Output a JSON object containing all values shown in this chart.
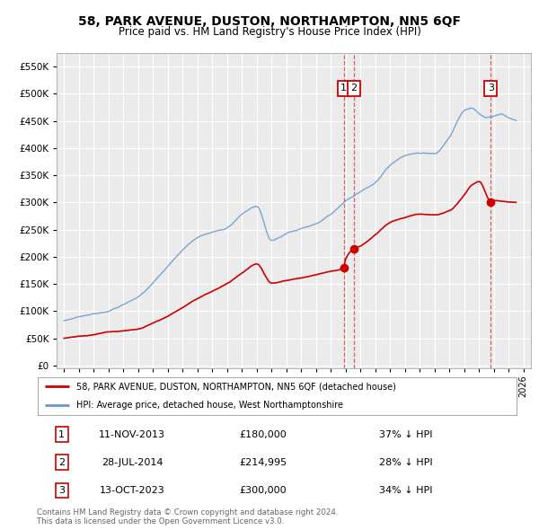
{
  "title": "58, PARK AVENUE, DUSTON, NORTHAMPTON, NN5 6QF",
  "subtitle": "Price paid vs. HM Land Registry's House Price Index (HPI)",
  "ytick_values": [
    0,
    50000,
    100000,
    150000,
    200000,
    250000,
    300000,
    350000,
    400000,
    450000,
    500000,
    550000
  ],
  "xlim": [
    1994.5,
    2026.5
  ],
  "ylim": [
    -5000,
    575000
  ],
  "red_line_color": "#cc0000",
  "blue_line_color": "#6699cc",
  "marker_color": "#cc0000",
  "dashed_line_color": "#cc4444",
  "sale1_x": 2013.87,
  "sale1_y": 180000,
  "sale2_x": 2014.57,
  "sale2_y": 214995,
  "sale3_x": 2023.79,
  "sale3_y": 300000,
  "legend_label_red": "58, PARK AVENUE, DUSTON, NORTHAMPTON, NN5 6QF (detached house)",
  "legend_label_blue": "HPI: Average price, detached house, West Northamptonshire",
  "table_rows": [
    [
      "1",
      "11-NOV-2013",
      "£180,000",
      "37% ↓ HPI"
    ],
    [
      "2",
      "28-JUL-2014",
      "£214,995",
      "28% ↓ HPI"
    ],
    [
      "3",
      "13-OCT-2023",
      "£300,000",
      "34% ↓ HPI"
    ]
  ],
  "footnote1": "Contains HM Land Registry data © Crown copyright and database right 2024.",
  "footnote2": "This data is licensed under the Open Government Licence v3.0.",
  "plot_bg": "#ebebeb",
  "fig_bg": "#ffffff",
  "grid_color": "#ffffff"
}
